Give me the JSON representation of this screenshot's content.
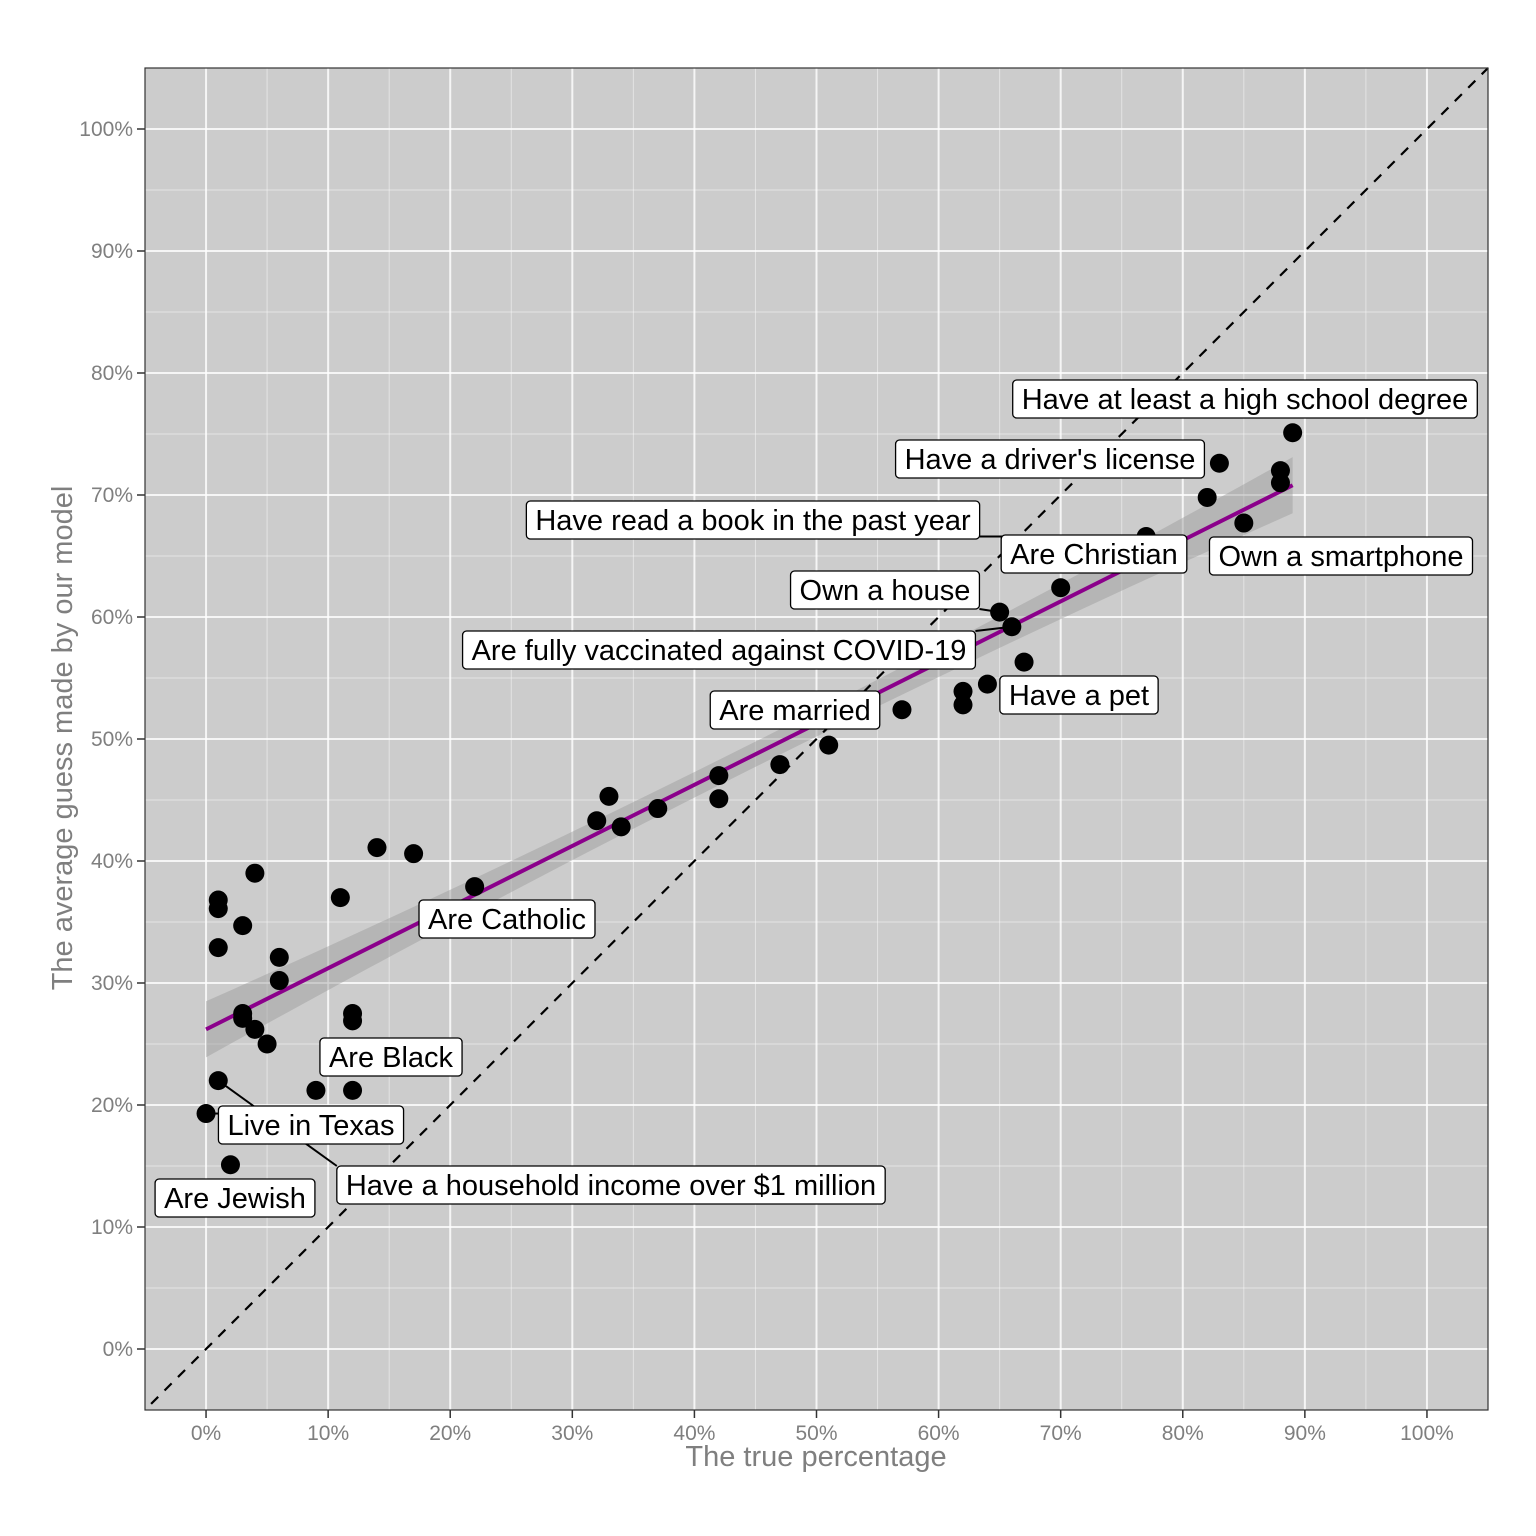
{
  "chart_data": {
    "type": "scatter",
    "xlabel": "The true percentage",
    "ylabel": "The average guess made by our model",
    "xlim": [
      -5,
      105
    ],
    "ylim": [
      -5,
      105
    ],
    "x_ticks": [
      "0%",
      "10%",
      "20%",
      "30%",
      "40%",
      "50%",
      "60%",
      "70%",
      "80%",
      "90%",
      "100%"
    ],
    "y_ticks": [
      "0%",
      "10%",
      "20%",
      "30%",
      "40%",
      "50%",
      "60%",
      "70%",
      "80%",
      "90%",
      "100%"
    ],
    "grid": true,
    "background": "#cccccc",
    "reference_line": {
      "style": "dashed",
      "slope": 1,
      "intercept": 0,
      "color": "#000000"
    },
    "trend_line": {
      "start": [
        0,
        26.2
      ],
      "end": [
        89,
        70.8
      ],
      "color": "#8b008b",
      "confidence_band": 2.3
    },
    "points": [
      {
        "x": 0,
        "y": 19.3
      },
      {
        "x": 1,
        "y": 36.8
      },
      {
        "x": 1,
        "y": 36.1
      },
      {
        "x": 1,
        "y": 32.9
      },
      {
        "x": 1,
        "y": 22.0
      },
      {
        "x": 2,
        "y": 15.1
      },
      {
        "x": 3,
        "y": 34.7
      },
      {
        "x": 3,
        "y": 27.5
      },
      {
        "x": 3,
        "y": 27.1
      },
      {
        "x": 4,
        "y": 39.0
      },
      {
        "x": 4,
        "y": 26.2
      },
      {
        "x": 5,
        "y": 25.0
      },
      {
        "x": 6,
        "y": 32.1
      },
      {
        "x": 6,
        "y": 30.2
      },
      {
        "x": 9,
        "y": 21.2
      },
      {
        "x": 11,
        "y": 37.0
      },
      {
        "x": 12,
        "y": 27.5
      },
      {
        "x": 12,
        "y": 26.9
      },
      {
        "x": 12,
        "y": 21.2
      },
      {
        "x": 14,
        "y": 41.1
      },
      {
        "x": 17,
        "y": 40.6
      },
      {
        "x": 22,
        "y": 37.9
      },
      {
        "x": 32,
        "y": 43.3
      },
      {
        "x": 33,
        "y": 45.3
      },
      {
        "x": 34,
        "y": 42.8
      },
      {
        "x": 37,
        "y": 44.3
      },
      {
        "x": 42,
        "y": 47.0
      },
      {
        "x": 42,
        "y": 45.1
      },
      {
        "x": 47,
        "y": 47.9
      },
      {
        "x": 51,
        "y": 49.5
      },
      {
        "x": 57,
        "y": 52.4
      },
      {
        "x": 62,
        "y": 53.9
      },
      {
        "x": 62,
        "y": 52.8
      },
      {
        "x": 64,
        "y": 54.5
      },
      {
        "x": 65,
        "y": 60.4
      },
      {
        "x": 66,
        "y": 59.2
      },
      {
        "x": 67,
        "y": 56.3
      },
      {
        "x": 70,
        "y": 62.4
      },
      {
        "x": 77,
        "y": 66.6
      },
      {
        "x": 82,
        "y": 69.8
      },
      {
        "x": 83,
        "y": 72.6
      },
      {
        "x": 85,
        "y": 67.7
      },
      {
        "x": 88,
        "y": 72.0
      },
      {
        "x": 88,
        "y": 71.0
      },
      {
        "x": 89,
        "y": 75.1
      }
    ],
    "annotations": [
      {
        "text": "Have at least a high school degree",
        "x": 89,
        "y": 75.1
      },
      {
        "text": "Have a driver's license",
        "x": 83,
        "y": 72.6
      },
      {
        "text": "Have read a book in the past year",
        "x": 77,
        "y": 66.6
      },
      {
        "text": "Are Christian",
        "x": 77,
        "y": 66.6
      },
      {
        "text": "Own a smartphone",
        "x": 85,
        "y": 67.7
      },
      {
        "text": "Own a house",
        "x": 65,
        "y": 60.4
      },
      {
        "text": "Are fully vaccinated against COVID-19",
        "x": 66,
        "y": 59.2
      },
      {
        "text": "Have a pet",
        "x": 64,
        "y": 54.5
      },
      {
        "text": "Are married",
        "x": 51,
        "y": 49.5
      },
      {
        "text": "Are Catholic",
        "x": 22,
        "y": 37.9
      },
      {
        "text": "Are Black",
        "x": 12,
        "y": 21.2
      },
      {
        "text": "Live in Texas",
        "x": 0,
        "y": 19.3
      },
      {
        "text": "Have a household income over $1 million",
        "x": 1,
        "y": 22.0
      },
      {
        "text": "Are Jewish",
        "x": 2,
        "y": 15.1
      }
    ]
  }
}
